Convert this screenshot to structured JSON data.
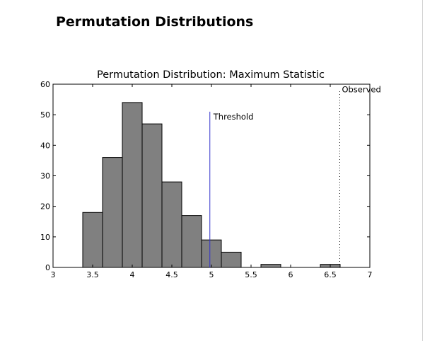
{
  "page": {
    "title": "Permutation Distributions"
  },
  "chart_data": {
    "type": "bar",
    "title": "Permutation Distribution:  Maximum Statistic",
    "xlabel": "",
    "ylabel": "",
    "xlim": [
      3,
      7
    ],
    "ylim": [
      0,
      60
    ],
    "xticks": [
      "3",
      "3.5",
      "4",
      "4.5",
      "5",
      "5.5",
      "6",
      "6.5",
      "7"
    ],
    "yticks": [
      "0",
      "10",
      "20",
      "30",
      "40",
      "50",
      "60"
    ],
    "grid": false,
    "bin_width": 0.25,
    "bins": [
      {
        "start": 3.375,
        "count": 18
      },
      {
        "start": 3.625,
        "count": 36
      },
      {
        "start": 3.875,
        "count": 54
      },
      {
        "start": 4.125,
        "count": 47
      },
      {
        "start": 4.375,
        "count": 28
      },
      {
        "start": 4.625,
        "count": 17
      },
      {
        "start": 4.875,
        "count": 9
      },
      {
        "start": 5.125,
        "count": 5
      },
      {
        "start": 5.625,
        "count": 1
      },
      {
        "start": 6.375,
        "count": 1
      }
    ],
    "bar_color": "#808080",
    "threshold": {
      "label": "Threshold",
      "x": 4.98,
      "top": 51,
      "color": "#3333cc"
    },
    "observed": {
      "label": "Observed",
      "x": 6.62,
      "top": 58,
      "color": "#000000"
    }
  }
}
